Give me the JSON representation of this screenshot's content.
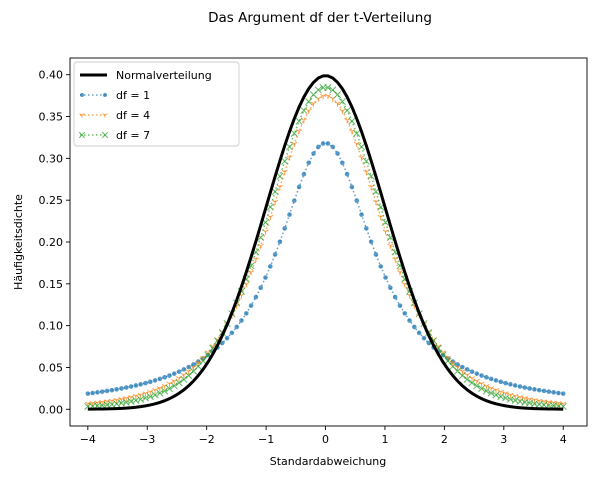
{
  "chart_data": {
    "type": "line",
    "title": "Das Argument df der t-Verteilung",
    "xlabel": "Standardabweichung",
    "ylabel": "Häufigkeitsdichte",
    "xlim": [
      -4.3,
      4.4
    ],
    "ylim": [
      -0.02,
      0.42
    ],
    "xticks": [
      -4,
      -3,
      -2,
      -1,
      0,
      1,
      2,
      3,
      4
    ],
    "xtick_labels": [
      "−4",
      "−3",
      "−2",
      "−1",
      "0",
      "1",
      "2",
      "3",
      "4"
    ],
    "yticks": [
      0.0,
      0.05,
      0.1,
      0.15,
      0.2,
      0.25,
      0.3,
      0.35,
      0.4
    ],
    "ytick_labels": [
      "0.00",
      "0.05",
      "0.10",
      "0.15",
      "0.20",
      "0.25",
      "0.30",
      "0.35",
      "0.40"
    ],
    "grid": false,
    "legend_position": "top-left",
    "x_range": [
      -4,
      4
    ],
    "samples": 100,
    "series": [
      {
        "name": "Normalverteilung",
        "distribution": "normal",
        "color": "#000000",
        "style": "solid",
        "marker": "none"
      },
      {
        "name": "df = 1",
        "distribution": "t",
        "df": 1,
        "color": "#1f77b4",
        "style": "dotted",
        "marker": "dot"
      },
      {
        "name": "df = 4",
        "distribution": "t",
        "df": 4,
        "color": "#ff7f0e",
        "style": "dotted",
        "marker": "tri-down"
      },
      {
        "name": "df = 7",
        "distribution": "t",
        "df": 7,
        "color": "#2ca02c",
        "style": "dotted",
        "marker": "x"
      }
    ]
  }
}
